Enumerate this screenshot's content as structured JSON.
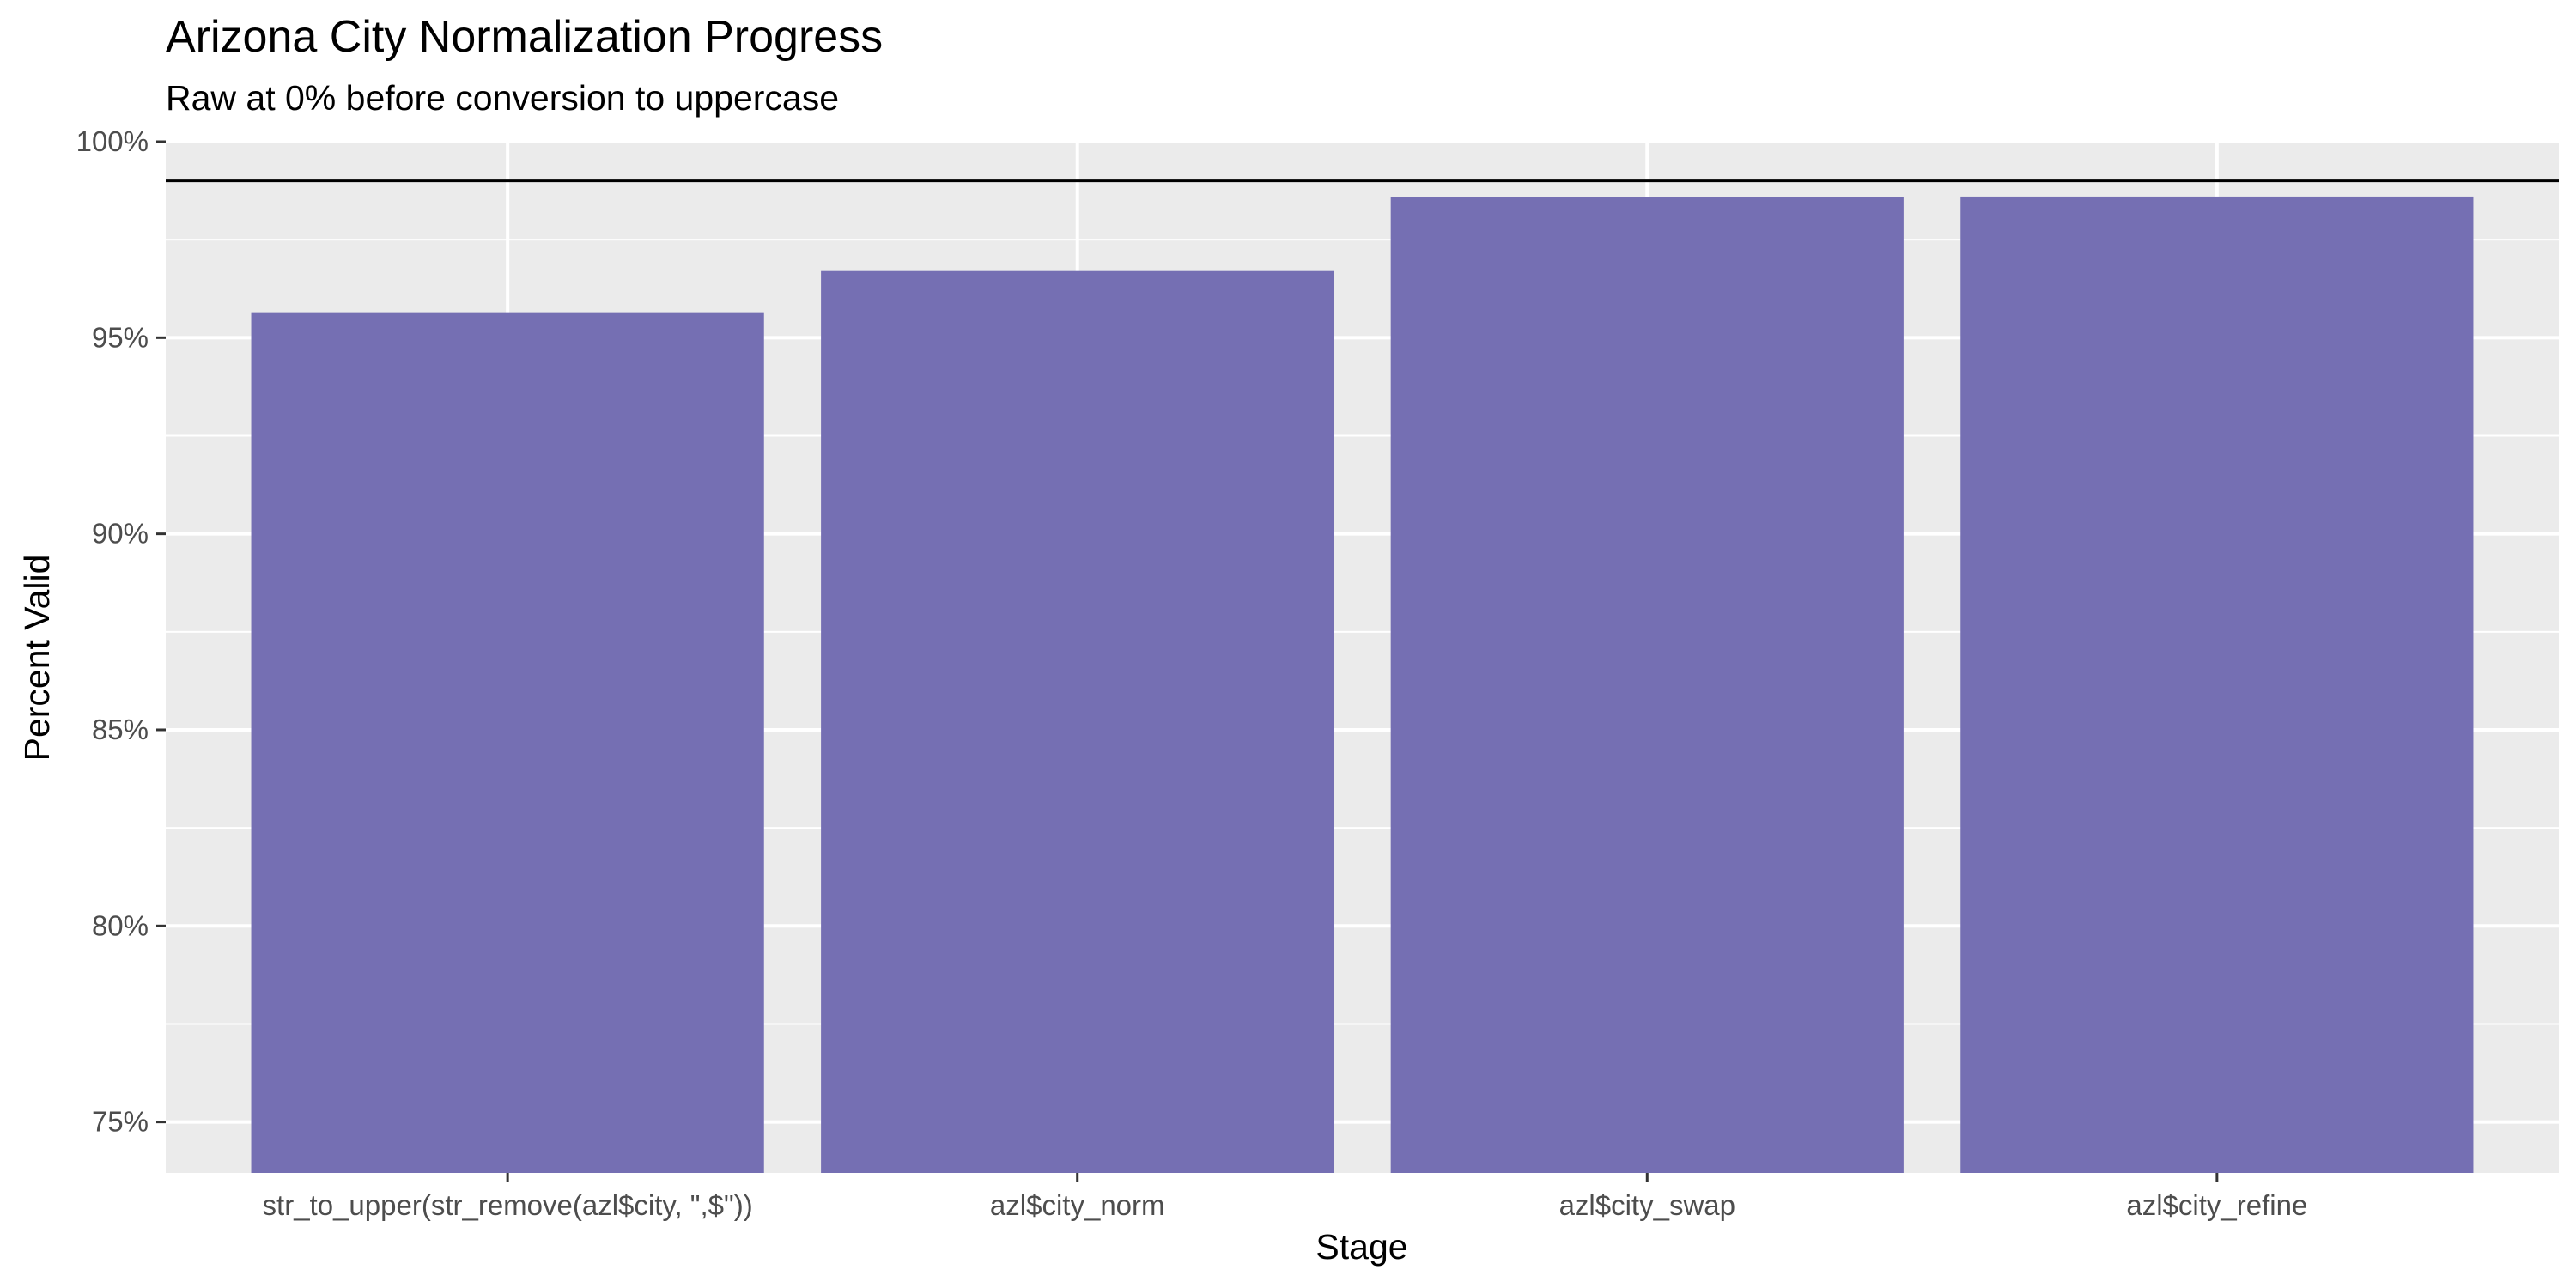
{
  "chart_data": {
    "type": "bar",
    "title": "Arizona City Normalization Progress",
    "subtitle": "Raw at 0% before conversion to uppercase",
    "xlabel": "Stage",
    "ylabel": "Percent Valid",
    "categories": [
      "str_to_upper(str_remove(azl$city, \",$\"))",
      "azl$city_norm",
      "azl$city_swap",
      "azl$city_refine"
    ],
    "values": [
      95.65,
      96.7,
      98.58,
      98.6
    ],
    "ylim": [
      73.7,
      100.0
    ],
    "yticks": [
      75,
      80,
      85,
      90,
      95,
      100
    ],
    "ytick_labels": [
      "75%",
      "80%",
      "85%",
      "90%",
      "95%",
      "100%"
    ],
    "reference_line": 99,
    "grid": true,
    "legend": "none",
    "colors": {
      "bar": "#756fb3",
      "panel": "#ebebeb",
      "grid": "#ffffff",
      "reference_line": "#000000"
    }
  }
}
